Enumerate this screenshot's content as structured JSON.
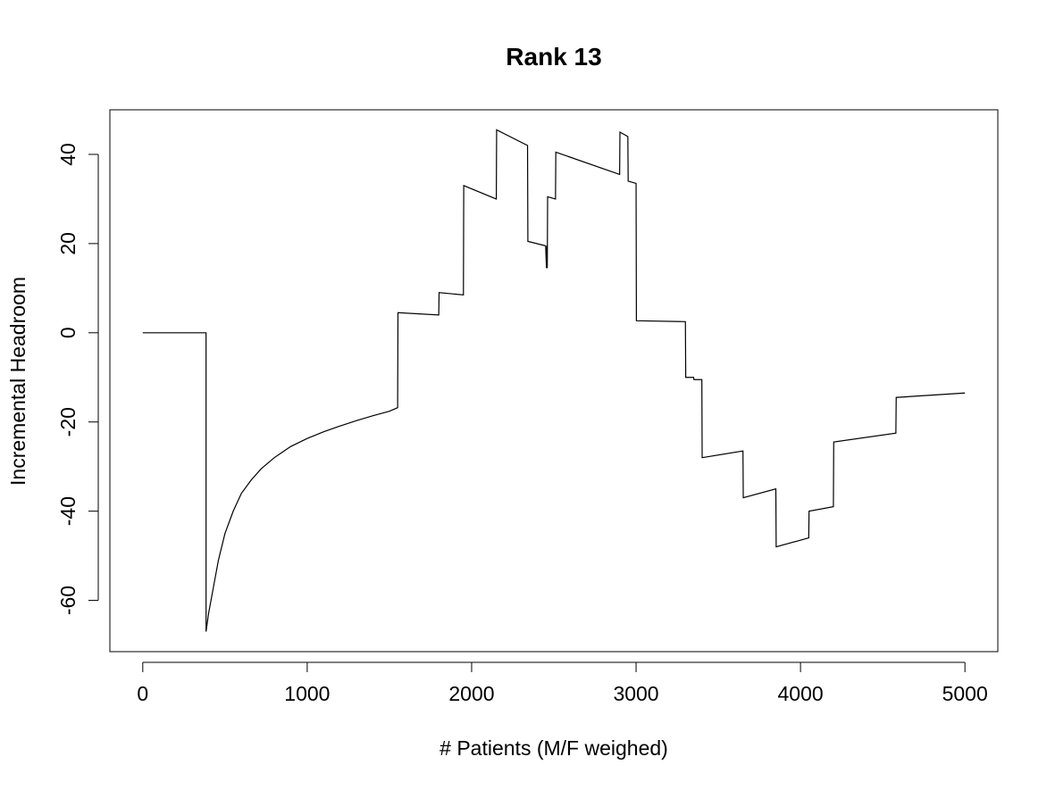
{
  "chart_data": {
    "type": "line",
    "title": "Rank 13",
    "xlabel": "# Patients (M/F weighed)",
    "ylabel": "Incremental Headroom",
    "xlim": [
      -200,
      5200
    ],
    "ylim": [
      -71.5,
      50
    ],
    "x_ticks": [
      0,
      1000,
      2000,
      3000,
      4000,
      5000
    ],
    "y_ticks": [
      -60,
      -40,
      -20,
      0,
      20,
      40
    ],
    "grid": false,
    "legend": "none",
    "line_color": "#000000",
    "series": [
      {
        "x": [
          0,
          385,
          385,
          400,
          430,
          460,
          500,
          550,
          600,
          660,
          720,
          800,
          900,
          1000,
          1100,
          1200,
          1300,
          1400,
          1500,
          1550,
          1552,
          1800,
          1802,
          1950,
          1952,
          2150,
          2152,
          2340,
          2342,
          2450,
          2455,
          2458,
          2460,
          2462,
          2510,
          2512,
          2900,
          2902,
          2950,
          2952,
          3000,
          3002,
          3300,
          3302,
          3350,
          3352,
          3400,
          3402,
          3650,
          3652,
          3850,
          3852,
          4050,
          4052,
          4200,
          4202,
          4580,
          4582,
          5000
        ],
        "y": [
          0,
          0,
          -67,
          -63,
          -57,
          -51,
          -45,
          -40,
          -36,
          -33,
          -30.5,
          -28,
          -25.5,
          -23.7,
          -22.2,
          -20.9,
          -19.7,
          -18.6,
          -17.6,
          -16.8,
          4.5,
          4,
          9,
          8.5,
          33,
          30,
          45.5,
          42,
          20.5,
          19.5,
          14.5,
          19.5,
          14.5,
          30.5,
          30,
          40.5,
          35.5,
          45,
          44,
          34,
          33.5,
          2.7,
          2.5,
          -10,
          -10,
          -10.5,
          -10.5,
          -28,
          -26.5,
          -37,
          -35,
          -48,
          -46,
          -40,
          -39,
          -24.5,
          -22.5,
          -14.5,
          -13.5
        ]
      }
    ]
  }
}
